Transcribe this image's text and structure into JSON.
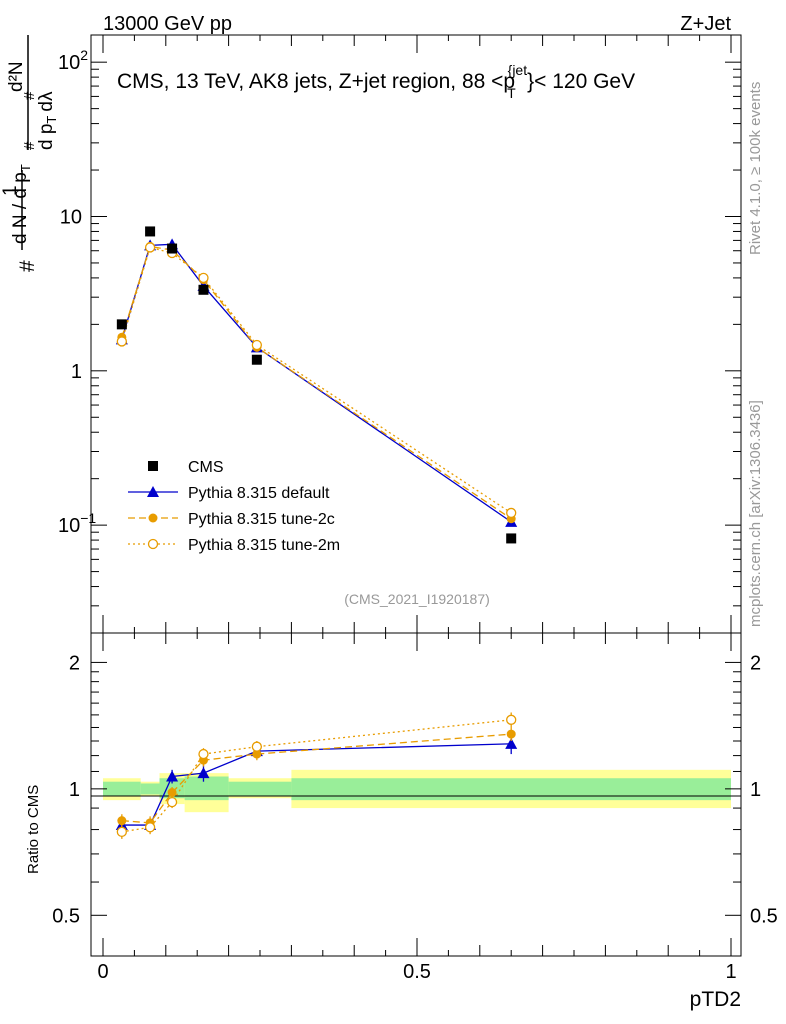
{
  "header": {
    "left": "13000 GeV pp",
    "right": "Z+Jet"
  },
  "side_labels": {
    "top": "Rivet 4.1.0, ≥ 100k events",
    "bottom": "mcplots.cern.ch [arXiv:1306.3436]"
  },
  "chart_data": {
    "type": "scatter",
    "title": "CMS, 13 TeV, AK8 jets, Z+jet region, 88 <p_T^{jet}< 120 GeV",
    "title_parts": {
      "main": "CMS, 13 TeV, AK8 jets, Z+jet region, 88 <p",
      "sub": "T",
      "sup": "{jet",
      "close": "}< 120 GeV"
    },
    "analysis_ref": "(CMS_2021_I1920187)",
    "xlabel": "pTD2",
    "ylabel_main": {
      "num": "1",
      "den": "d N / d p",
      "num2": "d²N",
      "den2": "d p",
      "den2b": "dλ",
      "hash": "#",
      "sub": "T"
    },
    "ylabel_ratio": "Ratio to CMS",
    "xlim": [
      0,
      1
    ],
    "ylim_main": [
      0.02,
      150
    ],
    "ylim_ratio": [
      0.4,
      2.35
    ],
    "x_ticks": [
      0,
      0.5,
      1
    ],
    "x_tick_labels": [
      "0",
      "0.5",
      "1"
    ],
    "y_ticks_main": [
      {
        "value": 0.1,
        "base": "10",
        "exp": "−1"
      },
      {
        "value": 1,
        "base": "1",
        "exp": ""
      },
      {
        "value": 10,
        "base": "10",
        "exp": ""
      },
      {
        "value": 100,
        "base": "10",
        "exp": "2"
      }
    ],
    "y_ticks_ratio": [
      {
        "value": 0.5,
        "label": "0.5"
      },
      {
        "value": 1,
        "label": "1"
      },
      {
        "value": 2,
        "label": "2"
      }
    ],
    "x": [
      0.03,
      0.075,
      0.11,
      0.16,
      0.245,
      0.65
    ],
    "bin_edges": [
      0,
      0.06,
      0.09,
      0.13,
      0.2,
      0.3,
      1.0
    ],
    "uncertainty_bands": [
      {
        "x0": 0,
        "x1": 0.06,
        "stat": [
          0.96,
          1.04
        ],
        "total": [
          0.94,
          1.06
        ]
      },
      {
        "x0": 0.06,
        "x1": 0.09,
        "stat": [
          0.97,
          1.03
        ],
        "total": [
          0.96,
          1.04
        ]
      },
      {
        "x0": 0.09,
        "x1": 0.13,
        "stat": [
          0.95,
          1.06
        ],
        "total": [
          0.92,
          1.09
        ]
      },
      {
        "x0": 0.13,
        "x1": 0.2,
        "stat": [
          0.94,
          1.07
        ],
        "total": [
          0.88,
          1.09
        ]
      },
      {
        "x0": 0.2,
        "x1": 0.3,
        "stat": [
          0.96,
          1.04
        ],
        "total": [
          0.95,
          1.06
        ]
      },
      {
        "x0": 0.3,
        "x1": 1.0,
        "stat": [
          0.94,
          1.06
        ],
        "total": [
          0.9,
          1.11
        ]
      }
    ],
    "series": [
      {
        "name": "CMS",
        "color": "#000000",
        "marker": "square",
        "dash": "none",
        "values": [
          2.0,
          8.0,
          6.2,
          3.35,
          1.18,
          0.082
        ]
      },
      {
        "name": "Pythia 8.315 default",
        "color": "#0000cc",
        "marker": "triangle",
        "dash": "solid",
        "values": [
          1.6,
          6.5,
          6.6,
          3.55,
          1.42,
          0.105
        ],
        "ratio": [
          0.82,
          0.82,
          1.07,
          1.09,
          1.23,
          1.28
        ],
        "ratio_err": [
          0.03,
          0.03,
          0.04,
          0.05,
          0.04,
          0.07
        ]
      },
      {
        "name": "Pythia 8.315 tune-2c",
        "color": "#e89c00",
        "marker": "circle",
        "dash": "dashed",
        "values": [
          1.65,
          6.4,
          6.05,
          3.9,
          1.42,
          0.11
        ],
        "ratio": [
          0.84,
          0.83,
          0.98,
          1.17,
          1.21,
          1.35
        ],
        "ratio_err": [
          0.03,
          0.03,
          0.03,
          0.04,
          0.04,
          0.05
        ]
      },
      {
        "name": "Pythia 8.315 tune-2m",
        "color": "#e89c00",
        "marker": "open-circle",
        "dash": "dotted",
        "values": [
          1.55,
          6.3,
          5.8,
          4.0,
          1.47,
          0.12
        ],
        "ratio": [
          0.79,
          0.81,
          0.93,
          1.21,
          1.26,
          1.46
        ],
        "ratio_err": [
          0.03,
          0.03,
          0.03,
          0.04,
          0.04,
          0.06
        ]
      }
    ],
    "legend_position": "center-left"
  }
}
